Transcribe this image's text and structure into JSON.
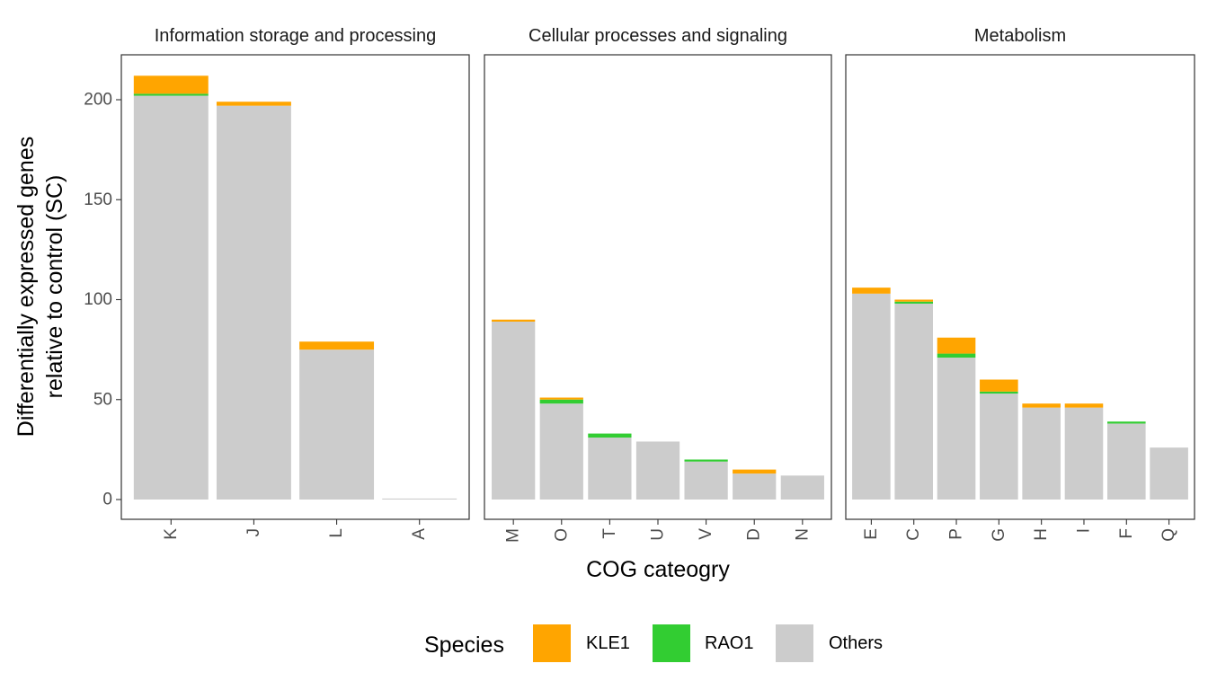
{
  "chart_data": {
    "type": "bar",
    "stacked": true,
    "xlabel": "COG cateogry",
    "ylabel_lines": [
      "Differentially expressed genes",
      "relative to control (SC)"
    ],
    "ylim": [
      0,
      222
    ],
    "yticks": [
      0,
      50,
      100,
      150,
      200
    ],
    "grid": false,
    "legend": {
      "title": "Species",
      "position": "bottom",
      "entries": [
        {
          "key": "KLE1",
          "label": "KLE1",
          "color": "#FFA500"
        },
        {
          "key": "RAO1",
          "label": "RAO1",
          "color": "#32CD32"
        },
        {
          "key": "Others",
          "label": "Others",
          "color": "#CCCCCC"
        }
      ]
    },
    "stack_order": [
      "Others",
      "RAO1",
      "KLE1"
    ],
    "facets": [
      {
        "title": "Information storage and processing",
        "categories": [
          "K",
          "J",
          "L",
          "A"
        ],
        "series": [
          {
            "name": "Others",
            "values": [
              202,
              197,
              75,
              0.5
            ]
          },
          {
            "name": "RAO1",
            "values": [
              1,
              0,
              0,
              0
            ]
          },
          {
            "name": "KLE1",
            "values": [
              9,
              2,
              4,
              0
            ]
          }
        ]
      },
      {
        "title": "Cellular processes and signaling",
        "categories": [
          "M",
          "O",
          "T",
          "U",
          "V",
          "D",
          "N"
        ],
        "series": [
          {
            "name": "Others",
            "values": [
              89,
              48,
              31,
              29,
              19,
              13,
              12
            ]
          },
          {
            "name": "RAO1",
            "values": [
              0,
              2,
              2,
              0,
              1,
              0,
              0
            ]
          },
          {
            "name": "KLE1",
            "values": [
              1,
              1,
              0,
              0,
              0,
              2,
              0
            ]
          }
        ]
      },
      {
        "title": "Metabolism",
        "categories": [
          "E",
          "C",
          "P",
          "G",
          "H",
          "I",
          "F",
          "Q"
        ],
        "series": [
          {
            "name": "Others",
            "values": [
              103,
              98,
              71,
              53,
              46,
              46,
              38,
              26
            ]
          },
          {
            "name": "RAO1",
            "values": [
              0,
              1,
              2,
              1,
              0,
              0,
              1,
              0
            ]
          },
          {
            "name": "KLE1",
            "values": [
              3,
              1,
              8,
              6,
              2,
              2,
              0,
              0
            ]
          }
        ]
      }
    ]
  }
}
